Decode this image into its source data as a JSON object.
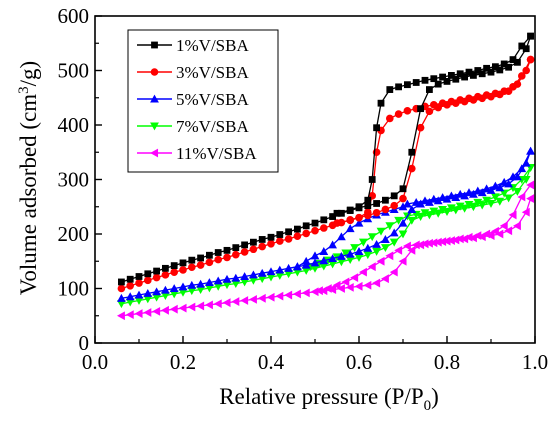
{
  "chart_data": {
    "type": "line",
    "title": "",
    "xlabel": {
      "main": "Relative pressure (P/P",
      "sub": "0",
      "tail": ")"
    },
    "ylabel": {
      "main": "Volume adsorbed (cm",
      "sup": "3",
      "tail": "/g)"
    },
    "xlim": [
      0.0,
      1.0
    ],
    "ylim": [
      0,
      600
    ],
    "xticks": [
      0.0,
      0.2,
      0.4,
      0.6,
      0.8,
      1.0
    ],
    "xtick_labels": [
      "0.0",
      "0.2",
      "0.4",
      "0.6",
      "0.8",
      "1.0"
    ],
    "yticks": [
      0,
      100,
      200,
      300,
      400,
      500,
      600
    ],
    "ytick_labels": [
      "0",
      "100",
      "200",
      "300",
      "400",
      "500",
      "600"
    ],
    "grid": false,
    "legend_position": "top-left",
    "series": [
      {
        "name": "1%V/SBA",
        "color": "#000000",
        "marker": "square",
        "adsorption": {
          "x": [
            0.06,
            0.08,
            0.1,
            0.12,
            0.14,
            0.16,
            0.18,
            0.2,
            0.22,
            0.24,
            0.26,
            0.28,
            0.3,
            0.32,
            0.34,
            0.36,
            0.38,
            0.4,
            0.42,
            0.44,
            0.46,
            0.48,
            0.5,
            0.52,
            0.54,
            0.56,
            0.58,
            0.6,
            0.62,
            0.64,
            0.66,
            0.68,
            0.7,
            0.72,
            0.74,
            0.76,
            0.78,
            0.8,
            0.82,
            0.84,
            0.86,
            0.88,
            0.9,
            0.92,
            0.94,
            0.96,
            0.98,
            0.99
          ],
          "y": [
            112,
            117,
            122,
            127,
            132,
            137,
            142,
            147,
            152,
            156,
            161,
            166,
            170,
            175,
            180,
            185,
            190,
            194,
            199,
            204,
            209,
            215,
            220,
            226,
            232,
            238,
            243,
            248,
            252,
            256,
            262,
            270,
            283,
            350,
            430,
            465,
            475,
            480,
            484,
            488,
            491,
            494,
            497,
            501,
            506,
            515,
            540,
            563
          ]
        },
        "desorption": {
          "x": [
            0.99,
            0.97,
            0.95,
            0.93,
            0.91,
            0.89,
            0.87,
            0.85,
            0.83,
            0.81,
            0.79,
            0.77,
            0.75,
            0.73,
            0.71,
            0.69,
            0.67,
            0.65,
            0.64,
            0.63,
            0.62,
            0.6,
            0.58,
            0.55
          ],
          "y": [
            563,
            545,
            520,
            512,
            507,
            504,
            500,
            497,
            494,
            491,
            488,
            485,
            482,
            478,
            474,
            470,
            465,
            440,
            395,
            300,
            262,
            250,
            244,
            238
          ]
        }
      },
      {
        "name": "3%V/SBA",
        "color": "#ff0000",
        "marker": "circle",
        "adsorption": {
          "x": [
            0.06,
            0.08,
            0.1,
            0.12,
            0.14,
            0.16,
            0.18,
            0.2,
            0.22,
            0.24,
            0.26,
            0.28,
            0.3,
            0.32,
            0.34,
            0.36,
            0.38,
            0.4,
            0.42,
            0.44,
            0.46,
            0.48,
            0.5,
            0.52,
            0.54,
            0.56,
            0.58,
            0.6,
            0.62,
            0.64,
            0.66,
            0.68,
            0.7,
            0.72,
            0.74,
            0.76,
            0.78,
            0.8,
            0.82,
            0.84,
            0.86,
            0.88,
            0.9,
            0.92,
            0.94,
            0.96,
            0.98,
            0.99
          ],
          "y": [
            100,
            105,
            110,
            115,
            120,
            125,
            130,
            134,
            139,
            143,
            148,
            153,
            157,
            162,
            167,
            172,
            177,
            182,
            187,
            191,
            196,
            201,
            206,
            211,
            216,
            221,
            226,
            230,
            234,
            239,
            245,
            252,
            265,
            320,
            395,
            425,
            432,
            437,
            440,
            443,
            446,
            449,
            452,
            456,
            462,
            475,
            500,
            520
          ]
        },
        "desorption": {
          "x": [
            0.99,
            0.97,
            0.95,
            0.93,
            0.91,
            0.89,
            0.87,
            0.85,
            0.83,
            0.81,
            0.79,
            0.77,
            0.75,
            0.73,
            0.71,
            0.69,
            0.67,
            0.65,
            0.64,
            0.63,
            0.62,
            0.6,
            0.58,
            0.55
          ],
          "y": [
            520,
            490,
            470,
            462,
            458,
            455,
            452,
            449,
            446,
            443,
            440,
            437,
            434,
            430,
            426,
            420,
            412,
            390,
            350,
            270,
            240,
            230,
            225,
            220
          ]
        }
      },
      {
        "name": "5%V/SBA",
        "color": "#0000ff",
        "marker": "triangle-up",
        "adsorption": {
          "x": [
            0.06,
            0.08,
            0.1,
            0.12,
            0.14,
            0.16,
            0.18,
            0.2,
            0.22,
            0.24,
            0.26,
            0.28,
            0.3,
            0.32,
            0.34,
            0.36,
            0.38,
            0.4,
            0.42,
            0.44,
            0.46,
            0.48,
            0.5,
            0.52,
            0.54,
            0.56,
            0.58,
            0.6,
            0.62,
            0.64,
            0.66,
            0.68,
            0.7,
            0.72,
            0.74,
            0.76,
            0.78,
            0.8,
            0.82,
            0.84,
            0.86,
            0.88,
            0.9,
            0.92,
            0.94,
            0.96,
            0.98,
            0.99
          ],
          "y": [
            82,
            85,
            88,
            91,
            94,
            97,
            100,
            103,
            106,
            108,
            111,
            114,
            117,
            119,
            122,
            125,
            128,
            131,
            134,
            137,
            140,
            143,
            147,
            151,
            155,
            159,
            163,
            168,
            174,
            181,
            190,
            202,
            220,
            245,
            255,
            258,
            261,
            264,
            267,
            270,
            273,
            276,
            280,
            285,
            292,
            305,
            330,
            352
          ]
        },
        "desorption": {
          "x": [
            0.99,
            0.97,
            0.95,
            0.93,
            0.91,
            0.89,
            0.87,
            0.85,
            0.83,
            0.81,
            0.79,
            0.77,
            0.75,
            0.73,
            0.71,
            0.7,
            0.68,
            0.66,
            0.64,
            0.62,
            0.6,
            0.58,
            0.56,
            0.54,
            0.52,
            0.5,
            0.48,
            0.46
          ],
          "y": [
            352,
            320,
            305,
            295,
            288,
            283,
            279,
            276,
            273,
            270,
            267,
            264,
            261,
            258,
            255,
            250,
            245,
            240,
            235,
            228,
            220,
            210,
            195,
            180,
            168,
            160,
            150,
            140
          ]
        }
      },
      {
        "name": "7%V/SBA",
        "color": "#00ff00",
        "marker": "triangle-down",
        "adsorption": {
          "x": [
            0.06,
            0.08,
            0.1,
            0.12,
            0.14,
            0.16,
            0.18,
            0.2,
            0.22,
            0.24,
            0.26,
            0.28,
            0.3,
            0.32,
            0.34,
            0.36,
            0.38,
            0.4,
            0.42,
            0.44,
            0.46,
            0.48,
            0.5,
            0.52,
            0.54,
            0.56,
            0.58,
            0.6,
            0.62,
            0.64,
            0.66,
            0.68,
            0.7,
            0.72,
            0.74,
            0.76,
            0.78,
            0.8,
            0.82,
            0.84,
            0.86,
            0.88,
            0.9,
            0.92,
            0.94,
            0.96,
            0.98,
            0.99
          ],
          "y": [
            72,
            75,
            78,
            81,
            84,
            87,
            90,
            93,
            96,
            98,
            101,
            104,
            107,
            109,
            112,
            115,
            118,
            121,
            124,
            127,
            130,
            133,
            137,
            141,
            145,
            149,
            153,
            157,
            162,
            168,
            175,
            185,
            200,
            225,
            232,
            235,
            238,
            241,
            244,
            247,
            250,
            253,
            256,
            260,
            266,
            278,
            300,
            322
          ]
        },
        "desorption": {
          "x": [
            0.99,
            0.97,
            0.95,
            0.93,
            0.91,
            0.89,
            0.87,
            0.85,
            0.83,
            0.81,
            0.79,
            0.77,
            0.75,
            0.73,
            0.71,
            0.69,
            0.67,
            0.65,
            0.63,
            0.61,
            0.59,
            0.57,
            0.55,
            0.53,
            0.51,
            0.49
          ],
          "y": [
            322,
            300,
            285,
            275,
            268,
            262,
            258,
            254,
            251,
            248,
            245,
            242,
            239,
            236,
            233,
            225,
            215,
            205,
            195,
            185,
            175,
            165,
            158,
            152,
            146,
            140
          ]
        }
      },
      {
        "name": "11%V/SBA",
        "color": "#ff00ff",
        "marker": "triangle-left",
        "adsorption": {
          "x": [
            0.06,
            0.08,
            0.1,
            0.12,
            0.14,
            0.16,
            0.18,
            0.2,
            0.22,
            0.24,
            0.26,
            0.28,
            0.3,
            0.32,
            0.34,
            0.36,
            0.38,
            0.4,
            0.42,
            0.44,
            0.46,
            0.48,
            0.5,
            0.52,
            0.54,
            0.56,
            0.58,
            0.6,
            0.62,
            0.64,
            0.66,
            0.68,
            0.7,
            0.72,
            0.74,
            0.76,
            0.78,
            0.8,
            0.82,
            0.84,
            0.86,
            0.88,
            0.9,
            0.92,
            0.94,
            0.96,
            0.98,
            0.99
          ],
          "y": [
            50,
            52,
            54,
            56,
            58,
            60,
            62,
            64,
            66,
            68,
            70,
            72,
            74,
            76,
            78,
            80,
            82,
            84,
            86,
            88,
            90,
            92,
            94,
            96,
            98,
            100,
            102,
            104,
            106,
            110,
            118,
            130,
            150,
            170,
            180,
            183,
            185,
            187,
            189,
            191,
            193,
            195,
            197,
            200,
            206,
            215,
            240,
            265
          ]
        },
        "desorption": {
          "x": [
            0.99,
            0.97,
            0.95,
            0.93,
            0.91,
            0.89,
            0.87,
            0.85,
            0.83,
            0.81,
            0.79,
            0.77,
            0.75,
            0.73,
            0.71,
            0.69,
            0.67,
            0.65,
            0.63,
            0.61,
            0.59,
            0.57,
            0.55,
            0.53,
            0.51
          ],
          "y": [
            290,
            268,
            235,
            215,
            205,
            200,
            197,
            194,
            191,
            188,
            186,
            184,
            182,
            180,
            178,
            170,
            160,
            150,
            140,
            130,
            120,
            112,
            106,
            100,
            96
          ]
        }
      }
    ]
  }
}
